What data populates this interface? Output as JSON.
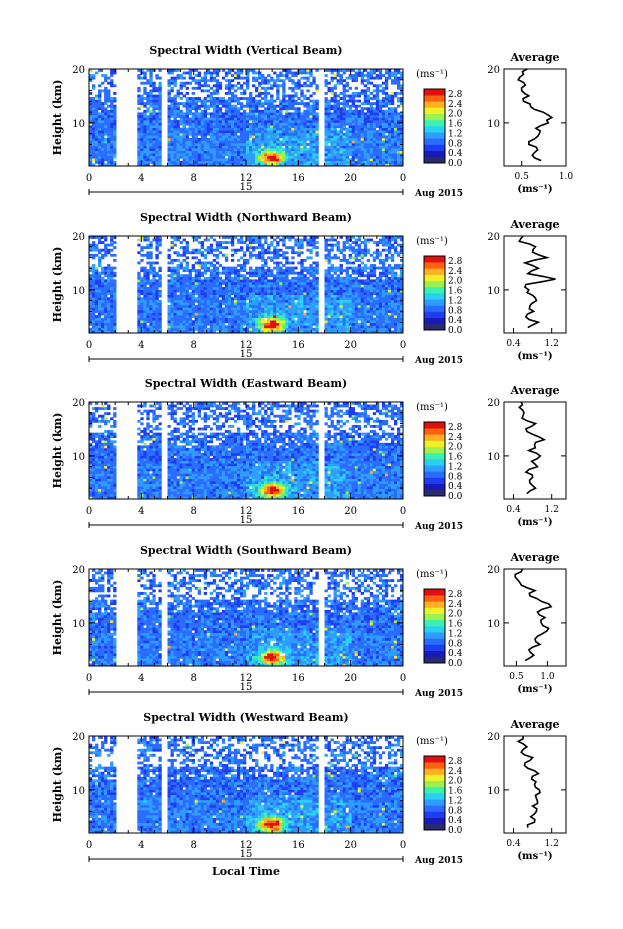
{
  "chart_data": {
    "type": "heatmap",
    "colorbar": {
      "unit_label": "(ms⁻¹)",
      "ticks": [
        "0.0",
        "0.4",
        "0.8",
        "1.2",
        "1.6",
        "2.0",
        "2.4",
        "2.8"
      ],
      "values": [
        0.0,
        0.4,
        0.8,
        1.2,
        1.6,
        2.0,
        2.4,
        2.8
      ],
      "range": [
        0.0,
        3.0
      ],
      "colors": [
        "#2a2a6e",
        "#1a1ab8",
        "#1e3cf0",
        "#2a6cff",
        "#2f9cff",
        "#2ad0f0",
        "#3cf0b0",
        "#9cf050",
        "#f0f028",
        "#ffb020",
        "#ff6010",
        "#e01010"
      ]
    },
    "shared": {
      "ylabel": "Height (km)",
      "ylim": [
        2,
        20
      ],
      "yticks": [
        "20",
        "10"
      ],
      "yticks_values": [
        20,
        10
      ],
      "xlim": [
        0,
        24
      ],
      "xticks": [
        "0",
        "4",
        "8",
        "12",
        "16",
        "20",
        "0"
      ],
      "xticks_values": [
        0,
        4,
        8,
        12,
        16,
        20,
        24
      ],
      "date_day": "15",
      "date_label": "Aug 2015",
      "xlabel": "Local Time",
      "gaps_hours": [
        [
          2.1,
          3.6
        ],
        [
          5.6,
          5.9
        ],
        [
          17.6,
          17.9
        ]
      ],
      "avg_title": "Average",
      "avg_xunit": "(ms⁻¹)"
    },
    "panels": [
      {
        "title": "Spectral Width (Vertical Beam)",
        "avg_xlim": [
          0.3,
          1.0
        ],
        "avg_xticks": [
          "0.5",
          "1.0"
        ],
        "avg_xticks_values": [
          0.5,
          1.0
        ],
        "avg_profile": {
          "height_km": [
            3,
            4,
            5,
            6,
            7,
            8,
            9,
            10,
            11,
            12,
            13,
            14,
            15,
            16,
            17,
            18,
            19,
            20
          ],
          "width": [
            0.72,
            0.62,
            0.68,
            0.58,
            0.64,
            0.7,
            0.66,
            0.8,
            0.84,
            0.74,
            0.6,
            0.52,
            0.58,
            0.5,
            0.54,
            0.46,
            0.52,
            0.56
          ]
        }
      },
      {
        "title": "Spectral Width (Northward Beam)",
        "avg_xlim": [
          0.2,
          1.5
        ],
        "avg_xticks": [
          "0.4",
          "1.2"
        ],
        "avg_xticks_values": [
          0.4,
          1.2
        ],
        "avg_profile": {
          "height_km": [
            3,
            4,
            5,
            6,
            7,
            8,
            9,
            10,
            11,
            12,
            13,
            14,
            15,
            16,
            17,
            18,
            19,
            20
          ],
          "width": [
            0.7,
            0.92,
            0.66,
            0.82,
            0.74,
            0.88,
            0.8,
            0.72,
            0.66,
            1.28,
            0.7,
            0.92,
            0.64,
            1.1,
            0.8,
            0.86,
            0.52,
            0.6
          ]
        }
      },
      {
        "title": "Spectral Width (Eastward Beam)",
        "avg_xlim": [
          0.2,
          1.5
        ],
        "avg_xticks": [
          "0.4",
          "1.2"
        ],
        "avg_xticks_values": [
          0.4,
          1.2
        ],
        "avg_profile": {
          "height_km": [
            3,
            4,
            5,
            6,
            7,
            8,
            9,
            10,
            11,
            12,
            13,
            14,
            15,
            16,
            17,
            18,
            19,
            20
          ],
          "width": [
            0.68,
            0.86,
            0.74,
            0.8,
            0.66,
            0.9,
            0.78,
            0.96,
            0.72,
            0.84,
            1.04,
            0.8,
            0.66,
            0.86,
            0.58,
            0.62,
            0.52,
            0.56
          ]
        }
      },
      {
        "title": "Spectral Width (Southward Beam)",
        "avg_xlim": [
          0.3,
          1.3
        ],
        "avg_xticks": [
          "0.5",
          "1.0"
        ],
        "avg_xticks_values": [
          0.5,
          1.0
        ],
        "avg_profile": {
          "height_km": [
            3,
            4,
            5,
            6,
            7,
            8,
            9,
            10,
            11,
            12,
            13,
            14,
            15,
            16,
            17,
            18,
            19,
            20
          ],
          "width": [
            0.64,
            0.78,
            0.7,
            0.88,
            0.8,
            0.92,
            1.02,
            0.9,
            0.96,
            0.84,
            1.06,
            0.9,
            0.72,
            0.8,
            0.58,
            0.52,
            0.48,
            0.6
          ]
        }
      },
      {
        "title": "Spectral Width (Westward Beam)",
        "avg_xlim": [
          0.2,
          1.5
        ],
        "avg_xticks": [
          "0.4",
          "1.2"
        ],
        "avg_xticks_values": [
          0.4,
          1.2
        ],
        "avg_profile": {
          "height_km": [
            3,
            4,
            5,
            6,
            7,
            8,
            9,
            10,
            11,
            12,
            13,
            14,
            15,
            16,
            17,
            18,
            19,
            20
          ],
          "width": [
            0.7,
            0.84,
            0.76,
            0.88,
            0.8,
            0.9,
            0.86,
            0.94,
            0.84,
            0.78,
            0.92,
            0.7,
            0.64,
            0.8,
            0.56,
            0.68,
            0.5,
            0.6
          ]
        }
      }
    ]
  }
}
